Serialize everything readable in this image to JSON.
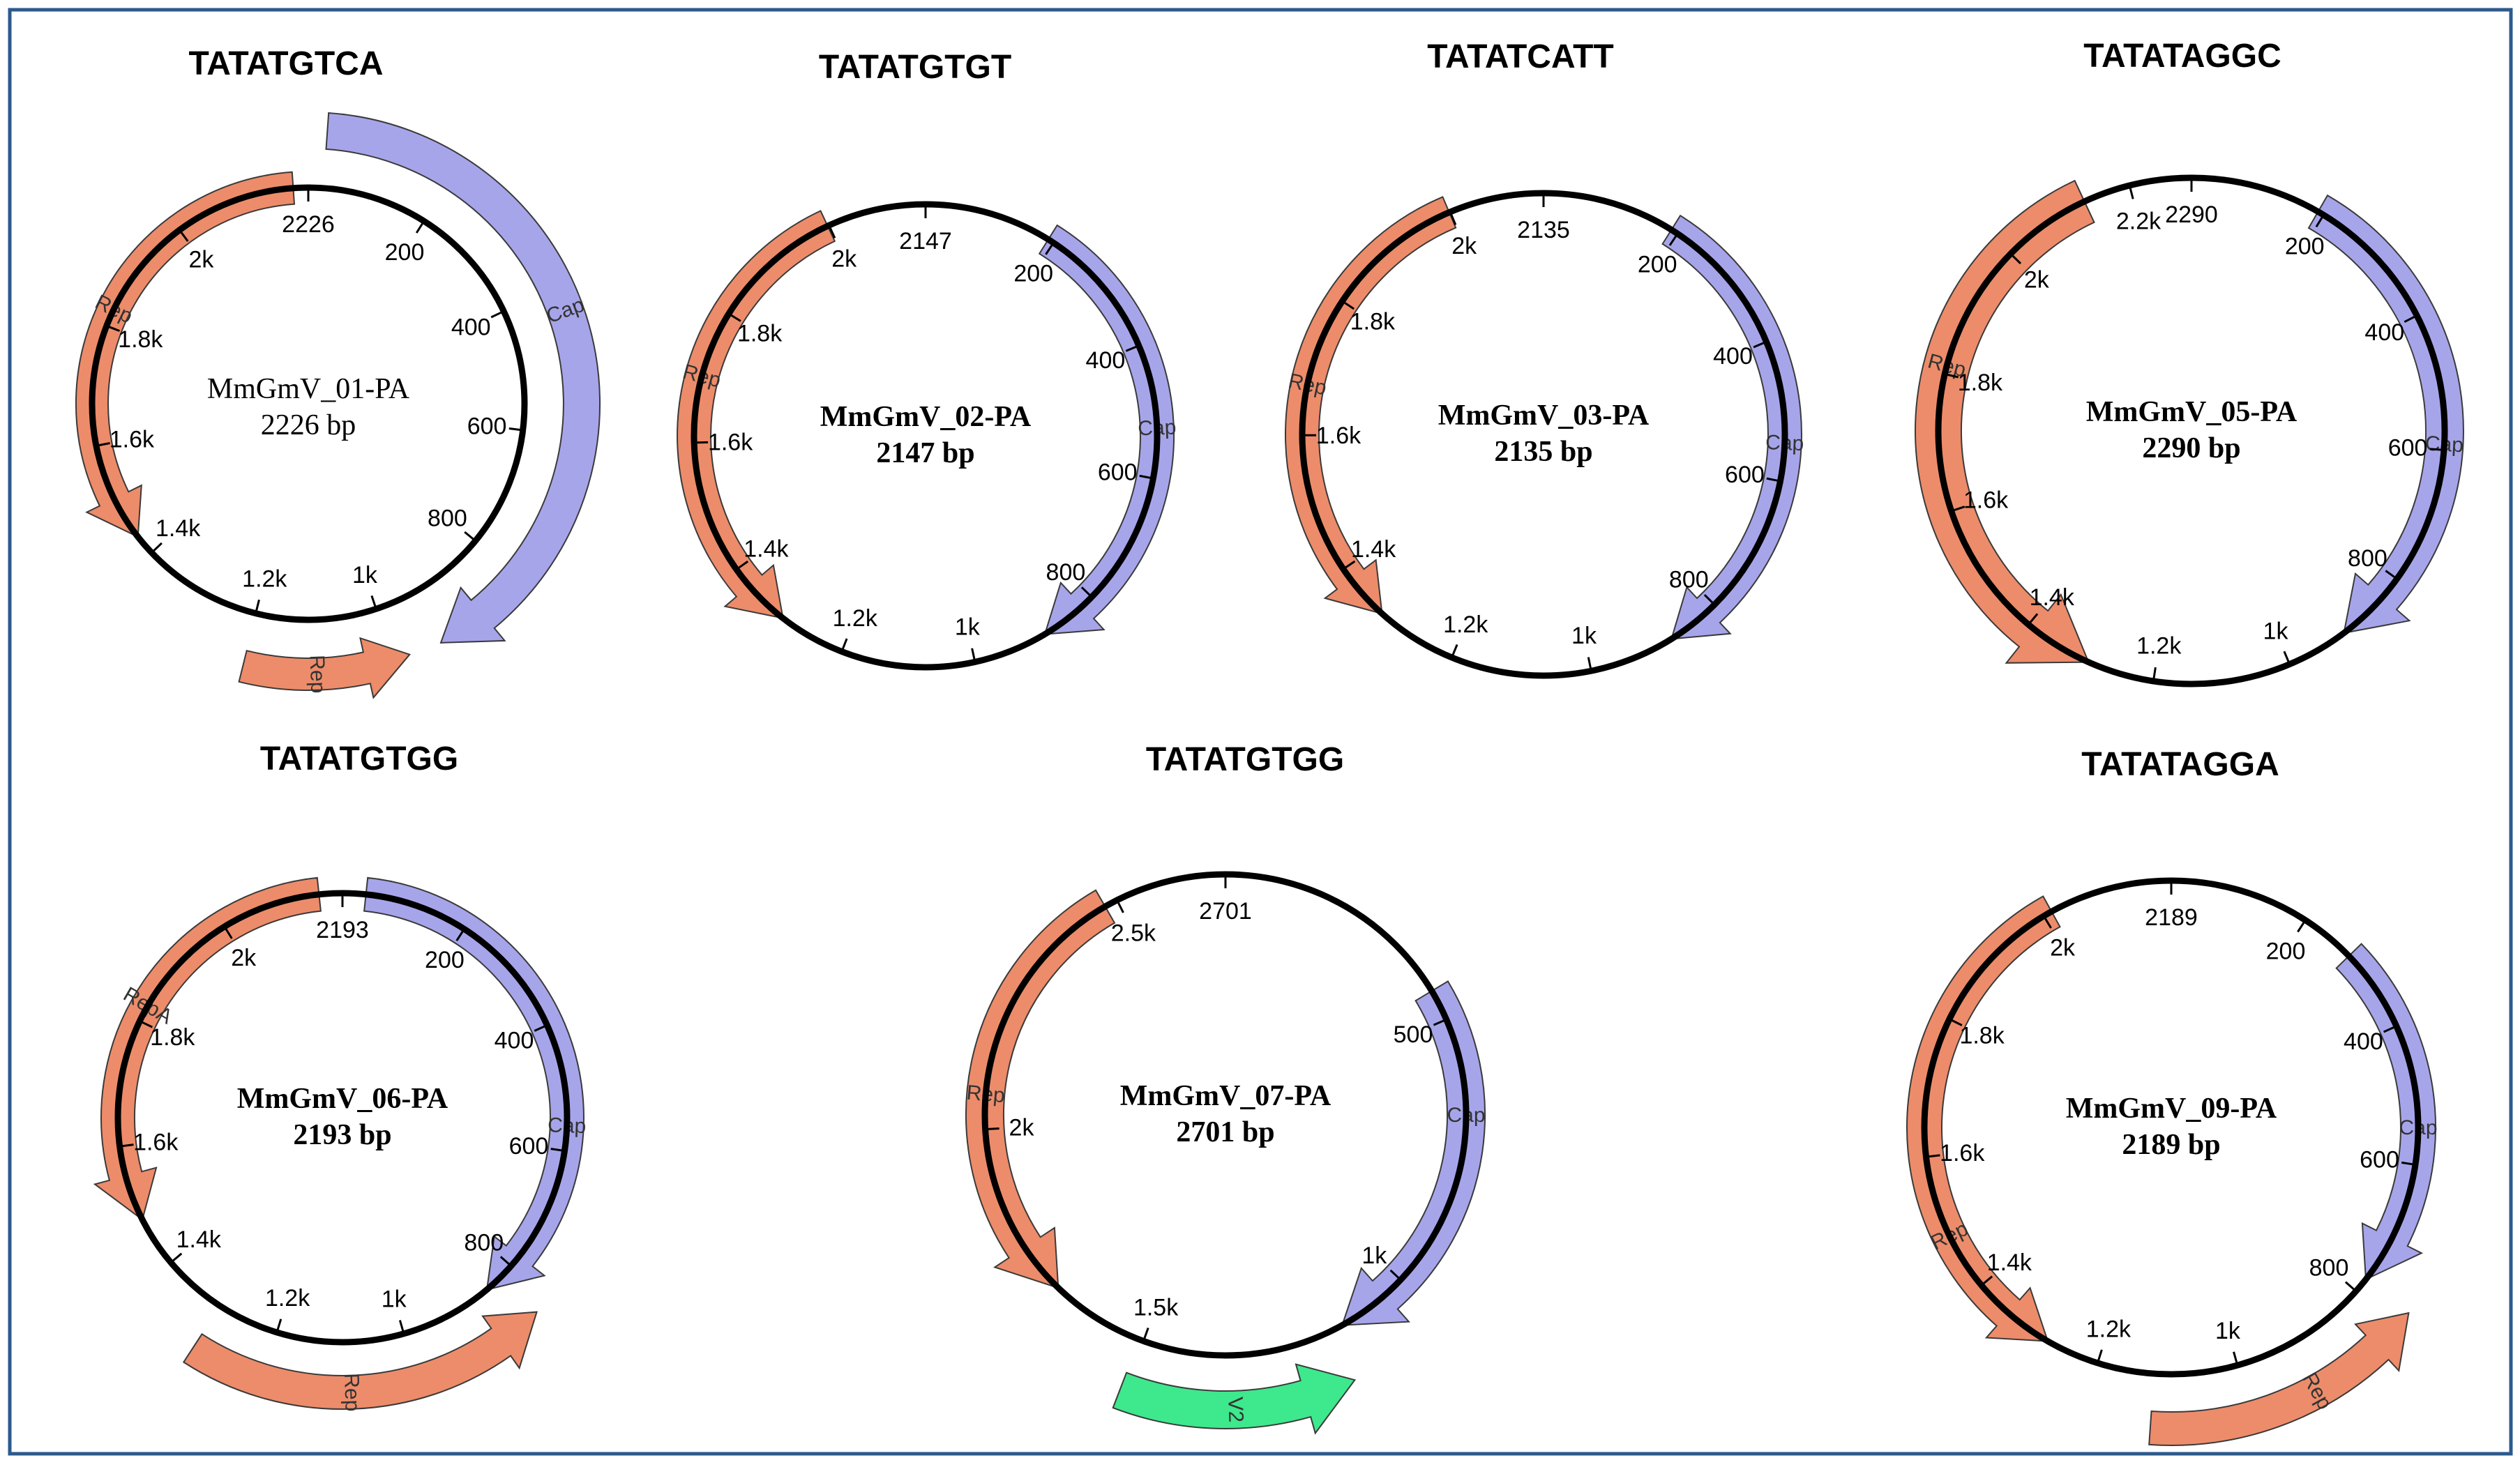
{
  "figure_colors": {
    "rep": "#ED8C6A",
    "cap": "#A7A5EA",
    "v2": "#3EE88C",
    "border": "#2C5A8C",
    "ring": "#000000"
  },
  "plasmids": [
    {
      "motif": "TATATGTCA",
      "name": "MmGmV_01-PA",
      "size": "2226 bp",
      "bold": false,
      "ticks": [
        "2226",
        "200",
        "400",
        "600",
        "800",
        "1k",
        "1.2k",
        "1.4k",
        "1.6k",
        "1.8k",
        "2k"
      ],
      "genes": [
        {
          "label": "Rep",
          "type": "rep"
        },
        {
          "label": "Rep",
          "type": "rep"
        },
        {
          "label": "Cap",
          "type": "cap"
        }
      ]
    },
    {
      "motif": "TATATGTGT",
      "name": "MmGmV_02-PA",
      "size": "2147 bp",
      "bold": true,
      "ticks": [
        "2147",
        "200",
        "400",
        "600",
        "800",
        "1k",
        "1.2k",
        "1.4k",
        "1.6k",
        "1.8k",
        "2k"
      ],
      "genes": [
        {
          "label": "Rep",
          "type": "rep"
        },
        {
          "label": "Cap",
          "type": "cap"
        }
      ]
    },
    {
      "motif": "TATATCATT",
      "name": "MmGmV_03-PA",
      "size": "2135 bp",
      "bold": true,
      "ticks": [
        "2135",
        "200",
        "400",
        "600",
        "800",
        "1k",
        "1.2k",
        "1.4k",
        "1.6k",
        "1.8k",
        "2k"
      ],
      "genes": [
        {
          "label": "Rep",
          "type": "rep"
        },
        {
          "label": "Cap",
          "type": "cap"
        }
      ]
    },
    {
      "motif": "TATATAGGC",
      "name": "MmGmV_05-PA",
      "size": "2290 bp",
      "bold": true,
      "ticks": [
        "2290",
        "200",
        "400",
        "600",
        "800",
        "1k",
        "1.2k",
        "1.4k",
        "1.6k",
        "1.8k",
        "2k",
        "2.2k"
      ],
      "genes": [
        {
          "label": "Rep",
          "type": "rep"
        },
        {
          "label": "Cap",
          "type": "cap"
        }
      ]
    },
    {
      "motif": "TATATGTGG",
      "name": "MmGmV_06-PA",
      "size": "2193 bp",
      "bold": true,
      "ticks": [
        "2193",
        "200",
        "400",
        "600",
        "800",
        "1k",
        "1.2k",
        "1.4k",
        "1.6k",
        "1.8k",
        "2k"
      ],
      "genes": [
        {
          "label": "RepA",
          "type": "rep"
        },
        {
          "label": "Rep",
          "type": "rep"
        },
        {
          "label": "Cap",
          "type": "cap"
        }
      ]
    },
    {
      "motif": "TATATGTGG",
      "name": "MmGmV_07-PA",
      "size": "2701 bp",
      "bold": true,
      "ticks": [
        "2701",
        "500",
        "1k",
        "1.5k",
        "2k",
        "2.5k"
      ],
      "genes": [
        {
          "label": "Rep",
          "type": "rep"
        },
        {
          "label": "Cap",
          "type": "cap"
        },
        {
          "label": "V2",
          "type": "v2"
        }
      ]
    },
    {
      "motif": "TATATAGGA",
      "name": "MmGmV_09-PA",
      "size": "2189 bp",
      "bold": true,
      "ticks": [
        "2189",
        "200",
        "400",
        "600",
        "800",
        "1k",
        "1.2k",
        "1.4k",
        "1.6k",
        "1.8k",
        "2k"
      ],
      "genes": [
        {
          "label": "Rep",
          "type": "rep"
        },
        {
          "label": "Rep",
          "type": "rep"
        },
        {
          "label": "Cap",
          "type": "cap"
        }
      ]
    }
  ]
}
